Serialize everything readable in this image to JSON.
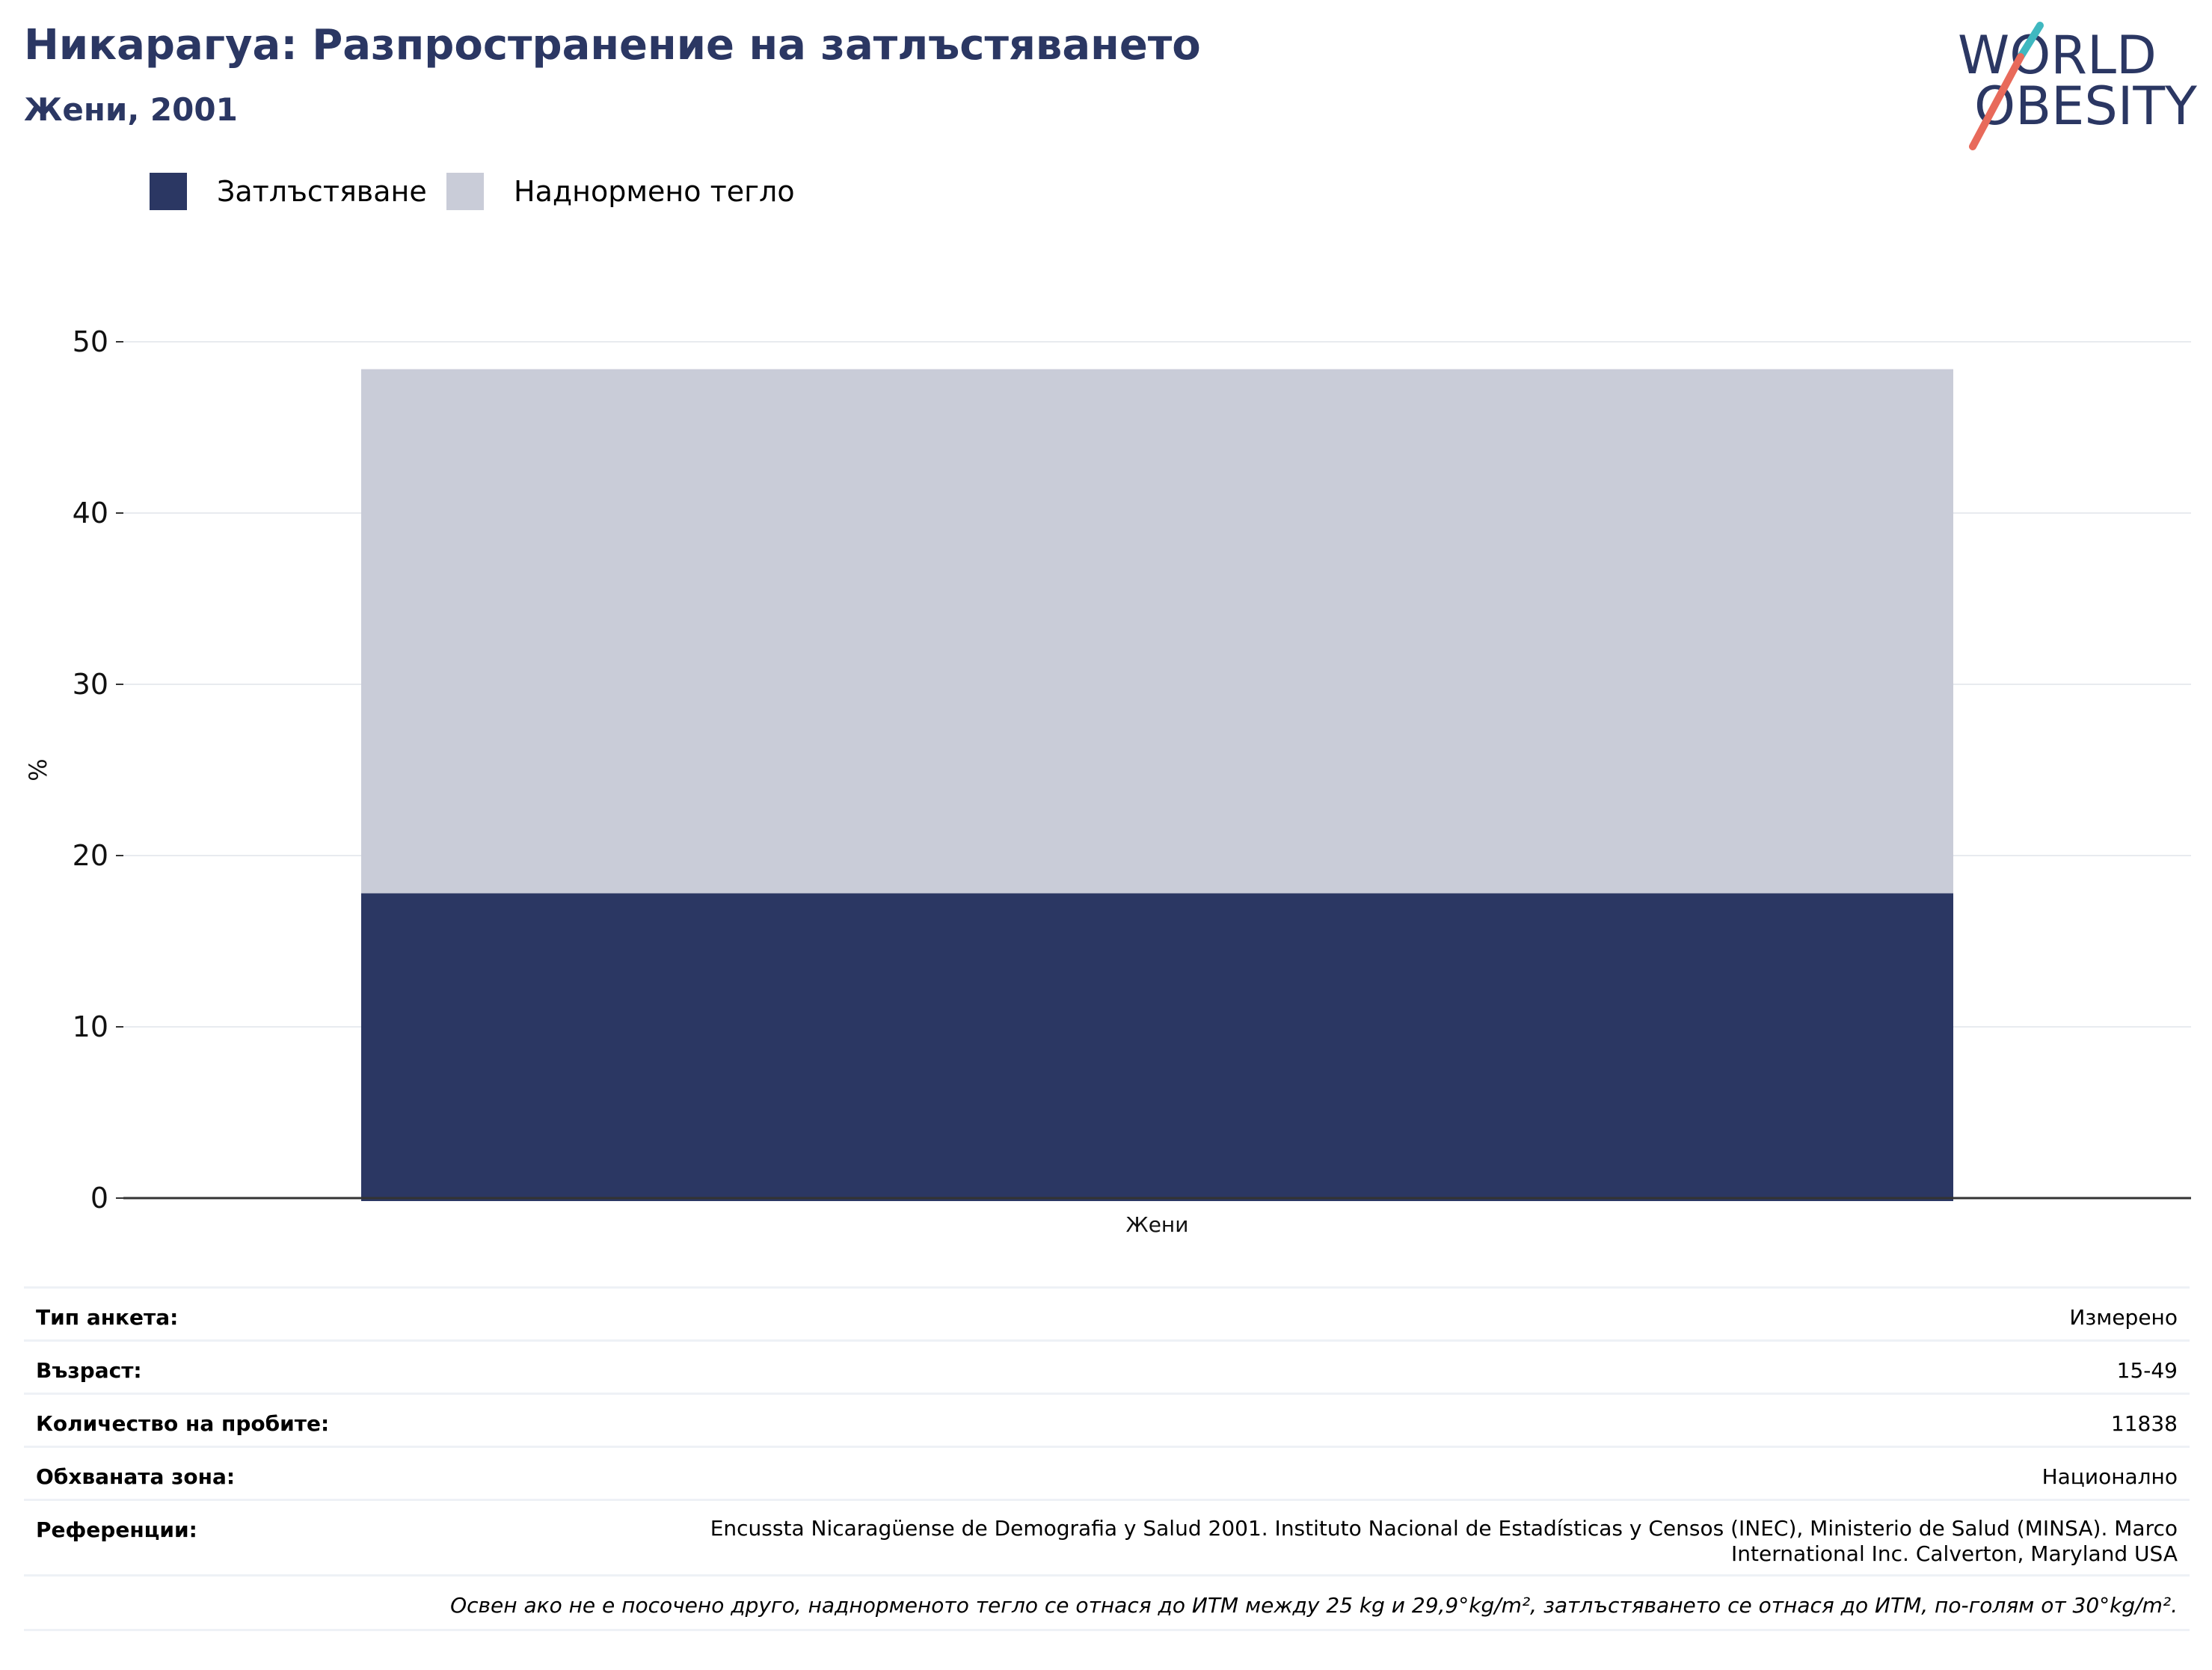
{
  "header": {
    "title": "Никарагуа: Разпространение на затлъстяването",
    "subtitle": "Жени, 2001"
  },
  "logo": {
    "line1": "WORLD",
    "line2": "OBESITY",
    "accent_teal": "#3fb8c0",
    "accent_coral": "#e86a5b",
    "text_color": "#2b3763"
  },
  "legend": {
    "items": [
      {
        "label": "Затлъстяване",
        "color": "#2b3763"
      },
      {
        "label": "Наднормено тегло",
        "color": "#c9ccd8"
      }
    ]
  },
  "chart_data": {
    "type": "bar",
    "stacked": true,
    "categories": [
      "Жени"
    ],
    "series": [
      {
        "name": "Затлъстяване",
        "values": [
          17.8
        ],
        "color": "#2b3763"
      },
      {
        "name": "Наднормено тегло",
        "values": [
          30.6
        ],
        "color": "#c9ccd8"
      }
    ],
    "xlabel": "",
    "ylabel": "%",
    "ylim": [
      0,
      50
    ],
    "yticks": [
      0,
      10,
      20,
      30,
      40,
      50
    ],
    "grid": true,
    "legend_position": "top-left"
  },
  "meta": {
    "rows": [
      {
        "key": "Тип анкета:",
        "value": "Измерено"
      },
      {
        "key": "Възраст:",
        "value": "15-49"
      },
      {
        "key": "Количество на пробите:",
        "value": "11838"
      },
      {
        "key": "Обхваната зона:",
        "value": "Национално"
      }
    ],
    "references_key": "Референции:",
    "references_line1": "Encussta Nicaragüense de Demografia y Salud 2001. Instituto Nacional de Estadísticas y Censos (INEC), Ministerio de Salud (MINSA). Marco",
    "references_line2": "International Inc. Calverton, Maryland USA",
    "note": "Освен ако не е посочено друго, наднорменото тегло се отнася до ИТМ между 25 kg и 29,9°kg/m², затлъстяването се отнася до ИТМ, по-голям от 30°kg/m²."
  }
}
